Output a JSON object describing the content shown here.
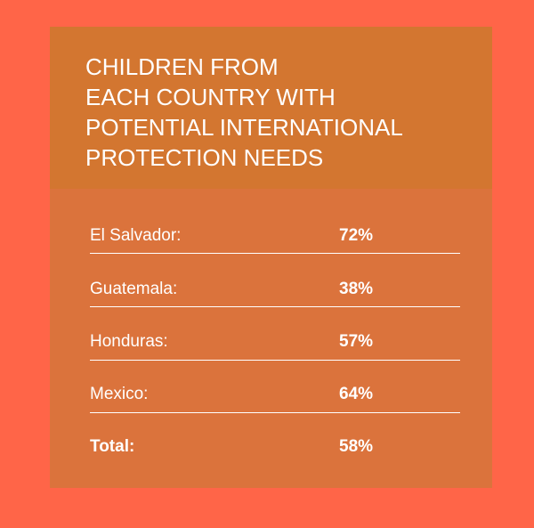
{
  "card": {
    "title_lines": [
      "CHILDREN FROM",
      "EACH COUNTRY WITH",
      "POTENTIAL INTERNATIONAL",
      "PROTECTION NEEDS"
    ]
  },
  "chart_data": {
    "type": "table",
    "title": "CHILDREN FROM EACH COUNTRY WITH POTENTIAL INTERNATIONAL PROTECTION NEEDS",
    "rows": [
      {
        "label": "El Salvador:",
        "value": "72%",
        "number": 72
      },
      {
        "label": "Guatemala:",
        "value": "38%",
        "number": 38
      },
      {
        "label": "Honduras:",
        "value": "57%",
        "number": 57
      },
      {
        "label": "Mexico:",
        "value": "64%",
        "number": 64
      },
      {
        "label": "Total:",
        "value": "58%",
        "number": 58,
        "is_total": true
      }
    ]
  },
  "colors": {
    "background": "#FF6548",
    "card_body": "#DB733C",
    "card_header": "#D37630",
    "text": "#FFFFFF"
  }
}
